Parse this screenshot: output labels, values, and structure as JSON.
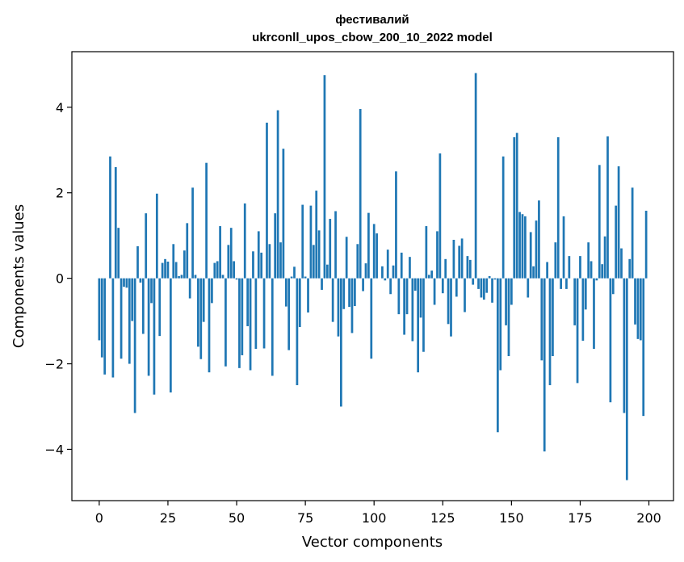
{
  "chart_data": {
    "type": "bar",
    "title_line1": "фестивалий",
    "title_line2": "ukrconll_upos_cbow_200_10_2022 model",
    "xlabel": "Vector components",
    "ylabel": "Components values",
    "xlim": [
      -9.95,
      208.95
    ],
    "ylim": [
      -5.2,
      5.3
    ],
    "xticks": [
      0,
      25,
      50,
      75,
      100,
      125,
      150,
      175,
      200
    ],
    "yticks": [
      -4,
      -2,
      0,
      2,
      4
    ],
    "ytick_labels": [
      "−4",
      "−2",
      "0",
      "2",
      "4"
    ],
    "grid": false,
    "bar_color": "#1f77b4",
    "values": [
      -1.45,
      -1.85,
      -2.25,
      0.0,
      2.85,
      -2.32,
      2.6,
      1.18,
      -1.88,
      -0.2,
      -0.22,
      -2.0,
      -1.0,
      -3.15,
      0.75,
      -0.1,
      -1.3,
      1.52,
      -2.28,
      -0.58,
      -2.72,
      1.98,
      -1.35,
      0.36,
      0.45,
      0.39,
      -2.67,
      0.8,
      0.38,
      0.05,
      0.08,
      0.65,
      1.29,
      -0.47,
      2.12,
      0.08,
      -1.6,
      -1.89,
      -1.02,
      2.7,
      -2.2,
      -0.58,
      0.36,
      0.4,
      1.22,
      0.08,
      -2.06,
      0.78,
      1.18,
      0.4,
      -0.03,
      -2.1,
      -1.8,
      1.75,
      -1.12,
      -2.15,
      0.63,
      -1.65,
      1.1,
      0.6,
      -1.64,
      3.64,
      0.8,
      -2.28,
      1.52,
      3.93,
      0.84,
      3.03,
      -0.66,
      -1.68,
      0.04,
      0.27,
      -2.5,
      -1.14,
      1.72,
      0.04,
      -0.8,
      1.7,
      0.78,
      2.05,
      1.12,
      -0.27,
      4.75,
      0.32,
      1.39,
      -1.02,
      1.57,
      -1.36,
      -3.0,
      -0.72,
      0.97,
      -0.67,
      -1.28,
      -0.65,
      0.8,
      3.96,
      -0.3,
      0.35,
      1.53,
      -1.88,
      1.27,
      1.05,
      0.0,
      0.28,
      -0.05,
      0.67,
      -0.37,
      0.3,
      2.5,
      -0.84,
      0.6,
      -1.32,
      -0.84,
      0.5,
      -1.47,
      -0.29,
      -2.2,
      -0.92,
      -1.72,
      1.22,
      0.08,
      0.18,
      -0.62,
      1.1,
      2.92,
      -0.35,
      0.45,
      -1.07,
      -1.36,
      0.9,
      -0.43,
      0.76,
      0.93,
      -0.79,
      0.52,
      0.43,
      -0.15,
      4.8,
      -0.25,
      -0.45,
      -0.5,
      -0.34,
      0.05,
      -0.57,
      -0.03,
      -3.6,
      -2.15,
      2.85,
      -1.1,
      -1.82,
      -0.62,
      3.3,
      3.4,
      1.55,
      1.5,
      1.45,
      -0.45,
      1.08,
      0.28,
      1.35,
      1.82,
      -1.92,
      -4.05,
      0.38,
      -2.5,
      -1.82,
      0.84,
      3.3,
      -0.25,
      1.45,
      -0.25,
      0.52,
      0.0,
      -1.1,
      -2.45,
      0.52,
      -1.46,
      -0.73,
      0.84,
      0.4,
      -1.65,
      -0.05,
      2.65,
      0.33,
      0.98,
      3.32,
      -2.9,
      -0.37,
      1.7,
      2.62,
      0.7,
      -3.15,
      -4.72,
      0.45,
      2.12,
      -1.08,
      -1.42,
      -1.45,
      -3.22,
      1.58
    ]
  }
}
